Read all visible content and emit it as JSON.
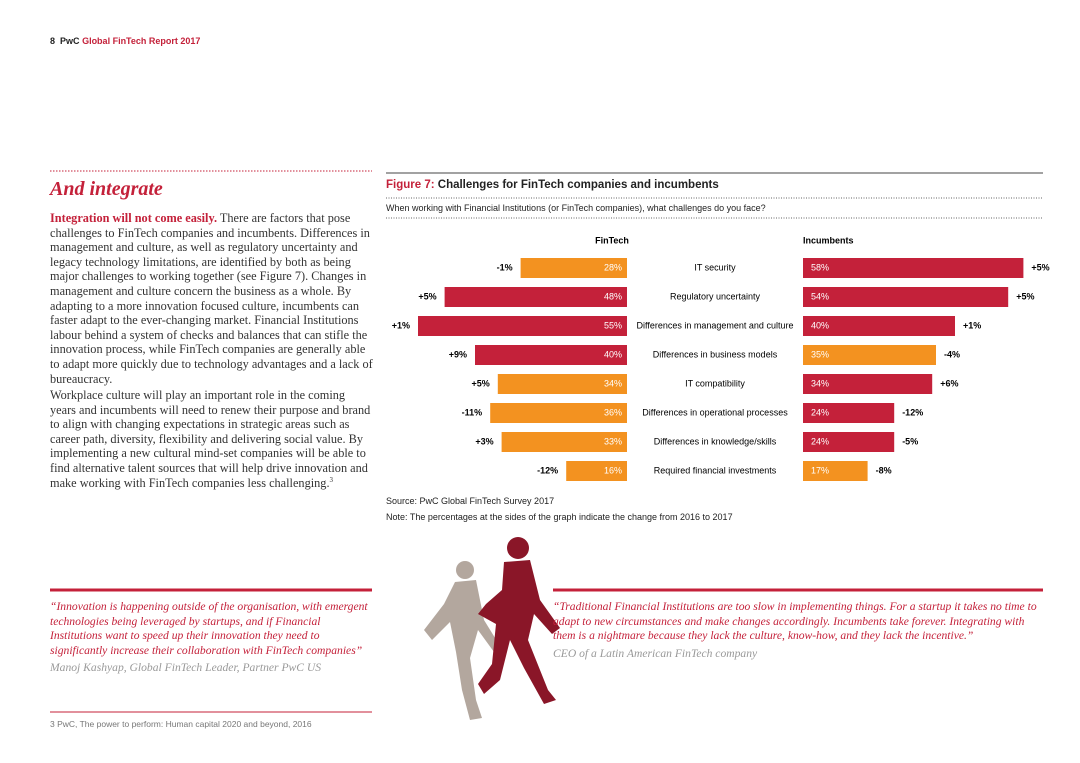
{
  "header": {
    "page": "8",
    "brand": "PwC",
    "report": "Global FinTech Report 2017"
  },
  "section": {
    "heading": "And integrate",
    "lead": "Integration will not come easily.",
    "paragraph_1": " There are factors that pose challenges to FinTech companies and incumbents. Differences in management and culture, as well as regulatory uncertainty and legacy technology limitations, are identified by both as being major challenges to working together (see Figure 7). Changes in management and culture concern the business as a whole. By adapting to a more innovation focused culture, incumbents can faster adapt to the ever-changing market. Financial Institutions labour behind a system of checks and balances that can stifle the innovation process, while FinTech companies are generally able to adapt more quickly due to technology advantages and a lack of bureaucracy.",
    "paragraph_2": "Workplace culture will play an important role in the coming years and incumbents will need to renew their purpose and brand to align with changing expectations in strategic areas such as career path, diversity, flexibility and delivering social value. By implementing a new cultural mind-set companies will be able to find alternative talent sources that will help drive innovation and make working with FinTech companies less challenging.",
    "footnote_ref": "3"
  },
  "chart_data": {
    "type": "butterfly_bar",
    "figure_label": "Figure 7:",
    "title": "Challenges for FinTech companies and incumbents",
    "subtitle": "When working with Financial Institutions (or FinTech companies), what challenges do you face?",
    "categories": [
      "IT security",
      "Regulatory uncertainty",
      "Differences in management and culture",
      "Differences in business models",
      "IT compatibility",
      "Differences in operational processes",
      "Differences in knowledge/skills",
      "Required financial investments"
    ],
    "series": [
      {
        "name": "FinTech",
        "values": [
          28,
          48,
          55,
          40,
          34,
          36,
          33,
          16
        ],
        "value_labels": [
          "28%",
          "48%",
          "55%",
          "40%",
          "34%",
          "36%",
          "33%",
          "16%"
        ],
        "colors": [
          "#f39220",
          "#c4213a",
          "#c4213a",
          "#c4213a",
          "#f39220",
          "#f39220",
          "#f39220",
          "#f39220"
        ],
        "changes": [
          -1,
          5,
          1,
          9,
          5,
          -11,
          3,
          -12
        ],
        "change_labels": [
          "-1%",
          "+5%",
          "+1%",
          "+9%",
          "+5%",
          "-11%",
          "+3%",
          "-12%"
        ]
      },
      {
        "name": "Incumbents",
        "values": [
          58,
          54,
          40,
          35,
          34,
          24,
          24,
          17
        ],
        "value_labels": [
          "58%",
          "54%",
          "40%",
          "35%",
          "34%",
          "24%",
          "24%",
          "17%"
        ],
        "colors": [
          "#c4213a",
          "#c4213a",
          "#c4213a",
          "#f39220",
          "#c4213a",
          "#c4213a",
          "#c4213a",
          "#f39220"
        ],
        "changes": [
          5,
          5,
          1,
          -4,
          6,
          -12,
          -5,
          -8
        ],
        "change_labels": [
          "+5%",
          "+5%",
          "+1%",
          "-4%",
          "+6%",
          "-12%",
          "-5%",
          "-8%"
        ]
      }
    ],
    "source": "Source: PwC Global FinTech Survey 2017",
    "note": "Note: The percentages at the sides of the graph indicate the change from 2016 to 2017"
  },
  "quotes": [
    {
      "text": "“Innovation is happening outside of the organisation, with emergent technologies being leveraged by startups, and if Financial Institutions want to speed up their innovation they need to significantly increase their collaboration with FinTech companies”",
      "attribution": "Manoj Kashyap, Global FinTech Leader, Partner PwC US"
    },
    {
      "text": "“Traditional Financial Institutions are too slow in implementing things. For a startup it takes no time to adapt to new circumstances and make changes accordingly. Incumbents take forever. Integrating with them is a nightmare because they lack the culture, know-how, and they lack the incentive.”",
      "attribution": "CEO of a Latin American FinTech company"
    }
  ],
  "footnote": "3  PwC, The power to perform: Human capital 2020 and beyond, 2016"
}
